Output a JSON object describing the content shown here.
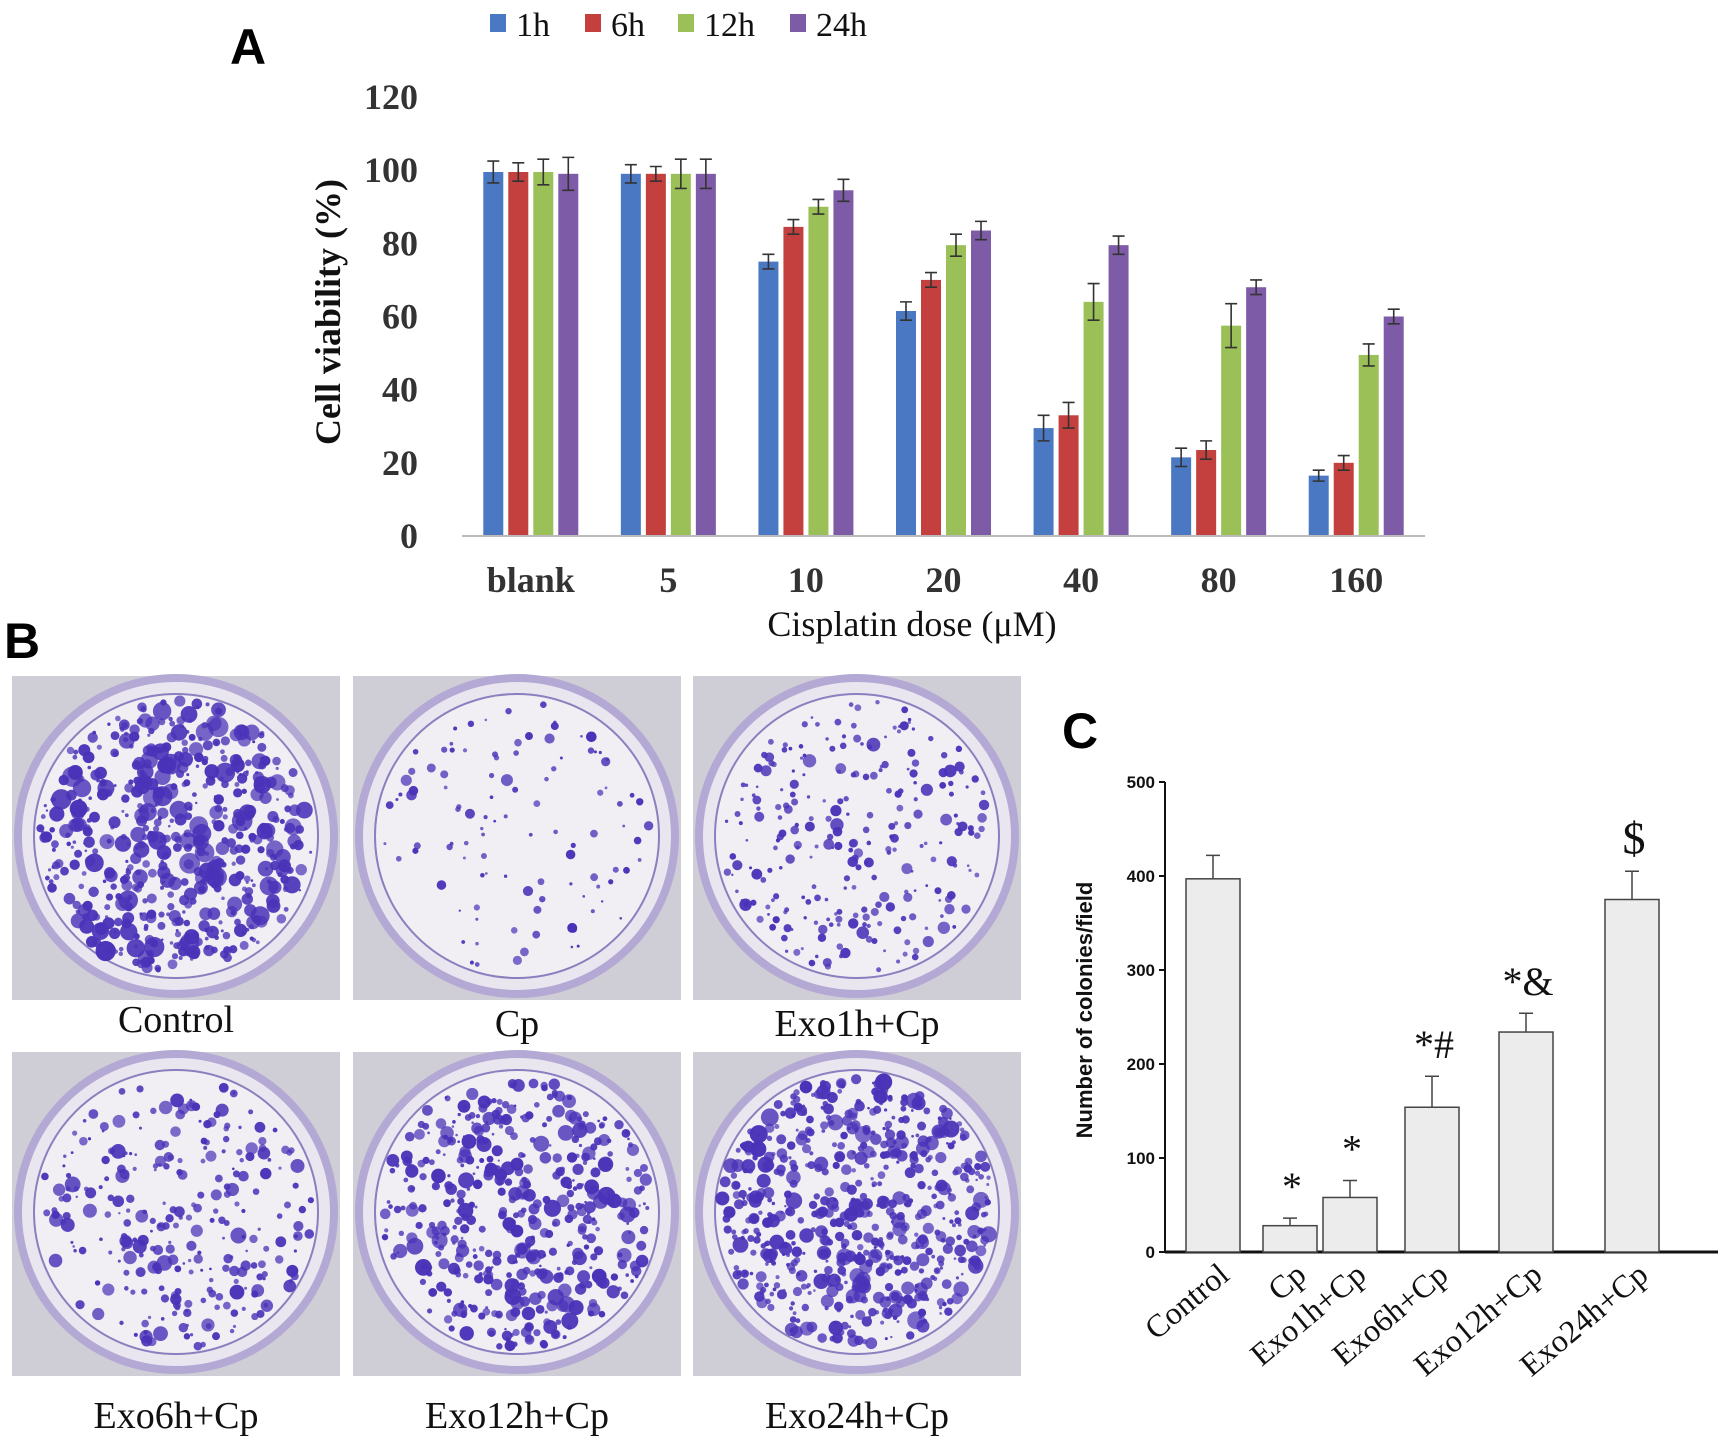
{
  "panels": {
    "a": "A",
    "b": "B",
    "c": "C"
  },
  "chart_data": [
    {
      "type": "bar",
      "panel": "A",
      "categories": [
        "blank",
        "5",
        "10",
        "20",
        "40",
        "80",
        "160"
      ],
      "xlabel": "Cisplatin dose (μM)",
      "ylabel": "Cell viability  (%)",
      "ylim": [
        0,
        120
      ],
      "yticks": [
        0,
        20,
        40,
        60,
        80,
        100,
        120
      ],
      "grid": false,
      "legend_position": "top",
      "series": [
        {
          "name": "1h",
          "color": "#4a78c2",
          "values": [
            99.5,
            99,
            75,
            61.5,
            29.5,
            21.5,
            16.5
          ],
          "errors": [
            3,
            2.5,
            2,
            2.5,
            3.5,
            2.5,
            1.5
          ]
        },
        {
          "name": "6h",
          "color": "#c4403e",
          "values": [
            99.5,
            99,
            84.5,
            70,
            33,
            23.5,
            20
          ],
          "errors": [
            2.5,
            2,
            2,
            2,
            3.5,
            2.5,
            2
          ]
        },
        {
          "name": "12h",
          "color": "#9bc057",
          "values": [
            99.5,
            99,
            90,
            79.5,
            64,
            57.5,
            49.5
          ],
          "errors": [
            3.5,
            4,
            2,
            3,
            5,
            6,
            3
          ]
        },
        {
          "name": "24h",
          "color": "#7e5ba6",
          "values": [
            99,
            99,
            94.5,
            83.5,
            79.5,
            68,
            60
          ],
          "errors": [
            4.5,
            4,
            3,
            2.5,
            2.5,
            2,
            2
          ]
        }
      ]
    },
    {
      "type": "bar",
      "panel": "C",
      "categories": [
        "Control",
        "Cp",
        "Exo1h+Cp",
        "Exo6h+Cp",
        "Exo12h+Cp",
        "Exo24h+Cp"
      ],
      "values": [
        397,
        28,
        58,
        154,
        234,
        375
      ],
      "errors": [
        25,
        8,
        18,
        33,
        20,
        30
      ],
      "significance": [
        "",
        "*",
        "*",
        "*#",
        "*&",
        "$"
      ],
      "ylabel": "Number of colonies/field",
      "ylim": [
        0,
        500
      ],
      "yticks": [
        0,
        100,
        200,
        300,
        400,
        500
      ],
      "bar_color": "#ececec",
      "grid": false
    }
  ],
  "plates": [
    {
      "label": "Control",
      "density": 560,
      "max_r": 10
    },
    {
      "label": "Cp",
      "density": 110,
      "max_r": 5
    },
    {
      "label": "Exo1h+Cp",
      "density": 260,
      "max_r": 6
    },
    {
      "label": "Exo6h+Cp",
      "density": 280,
      "max_r": 7
    },
    {
      "label": "Exo12h+Cp",
      "density": 480,
      "max_r": 8
    },
    {
      "label": "Exo24h+Cp",
      "density": 620,
      "max_r": 8
    }
  ]
}
